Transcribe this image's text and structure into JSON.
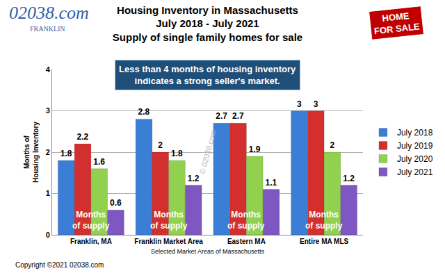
{
  "chart_data": {
    "type": "bar",
    "title": "Housing Inventory in Massachusetts",
    "subtitle": [
      "July 2018 - July 2021",
      "Supply of single family homes for sale"
    ],
    "x_label": "Selected Market Areas of Massachusetts",
    "y_label": [
      "Months of",
      "Housing Inventory"
    ],
    "categories": [
      "Franklin, MA",
      "Franklin Market Area",
      "Eastern MA",
      "Entire MA MLS"
    ],
    "series": [
      {
        "name": "July 2018",
        "color": "#3a7fd5",
        "values": [
          1.8,
          2.8,
          2.7,
          3
        ]
      },
      {
        "name": "July 2019",
        "color": "#d32f2f",
        "values": [
          2.2,
          2,
          2.7,
          3
        ]
      },
      {
        "name": "July 2020",
        "color": "#92d050",
        "values": [
          1.6,
          1.8,
          1.9,
          2
        ]
      },
      {
        "name": "July 2021",
        "color": "#7e57c2",
        "values": [
          0.6,
          1.2,
          1.1,
          1.2
        ]
      }
    ],
    "ylim": [
      0,
      4
    ],
    "yticks": [
      0,
      1,
      2,
      3,
      4
    ],
    "grid": true,
    "legend": "right",
    "data_labels": true,
    "note": [
      "Less than 4 months of housing inventory",
      "indicates a strong seller's market."
    ],
    "category_notes": [
      [
        "Months",
        "of supply"
      ],
      [
        "Months",
        "of supply"
      ],
      [
        "Months",
        "of supply"
      ],
      [
        "Months",
        "of supply"
      ]
    ],
    "watermark": "© 02038.com",
    "logo": [
      "02038.com",
      "FRANKLIN"
    ],
    "sign": [
      "HOME",
      "FOR SALE"
    ],
    "copyright": "Copyright ©2021 02038.com"
  }
}
